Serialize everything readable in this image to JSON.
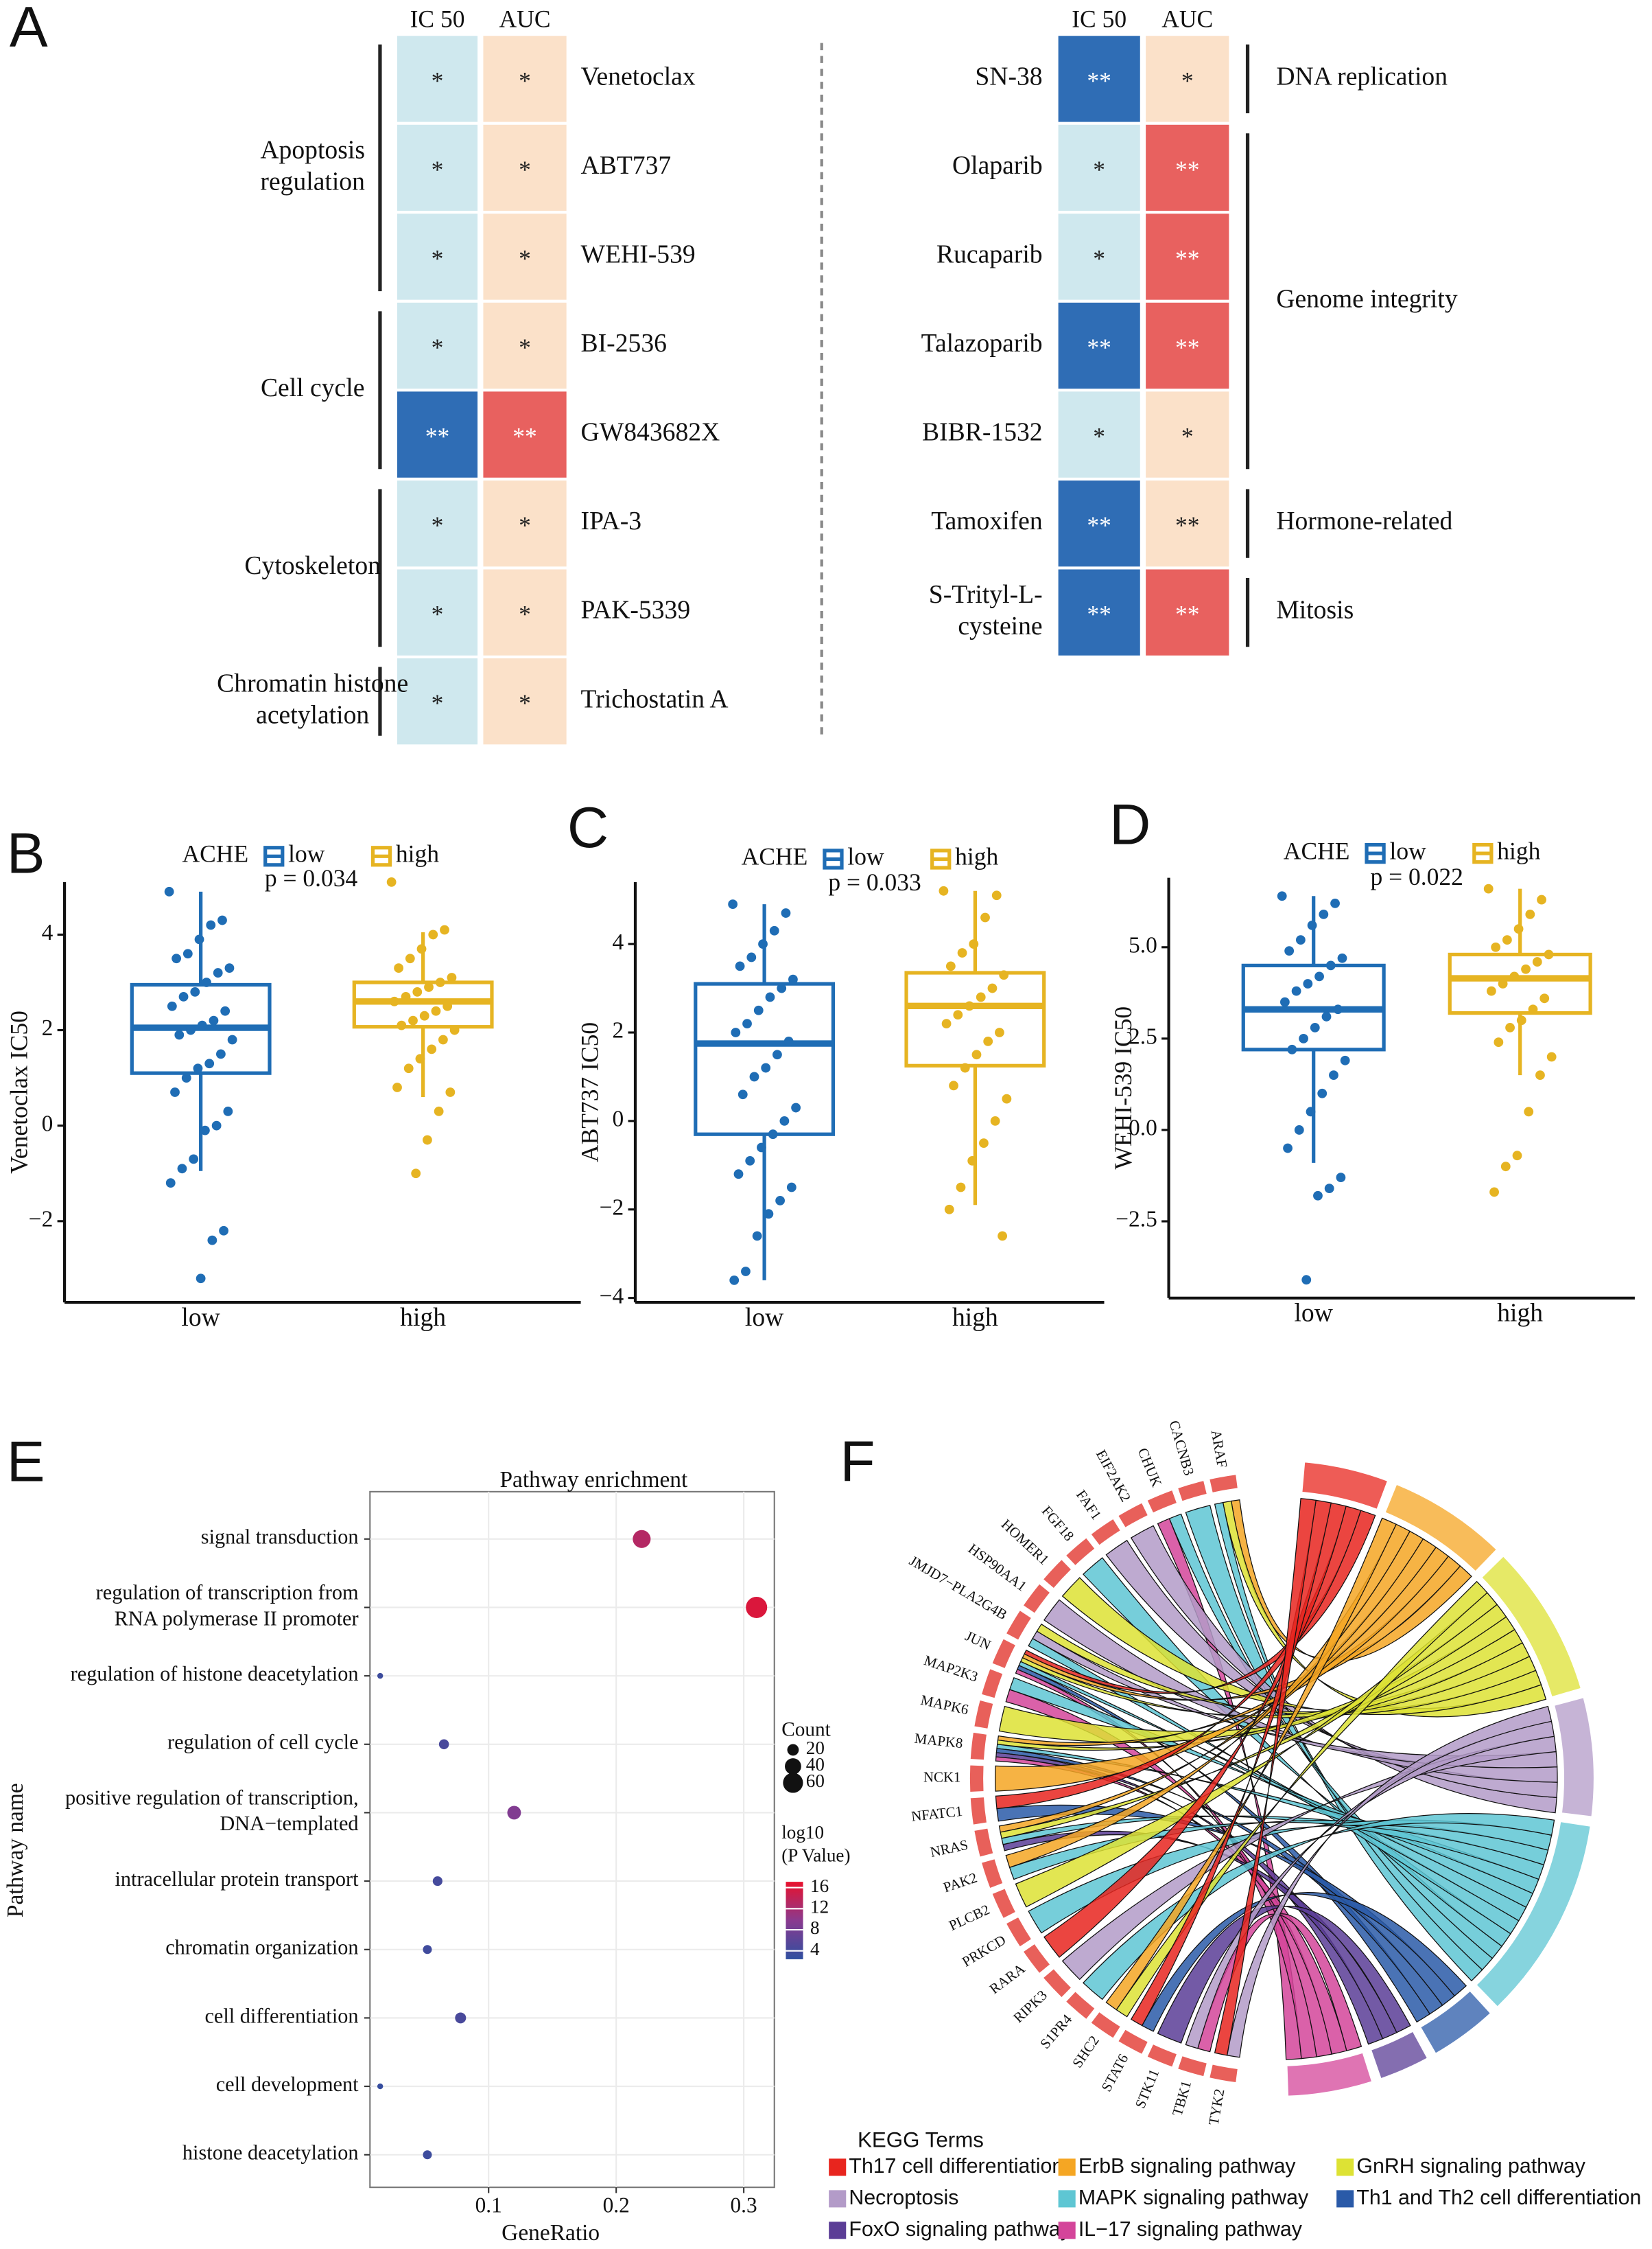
{
  "chart_data": [
    {
      "type": "heatmap",
      "panel": "A",
      "columns": [
        "IC 50",
        "AUC"
      ],
      "blocks": [
        {
          "groups": [
            {
              "name": "Apoptosis\nregulation",
              "drugs": [
                {
                  "name": "Venetoclax",
                  "cells": [
                    "*",
                    "*"
                  ],
                  "colors": [
                    "#cfe8ee",
                    "#fbe1c9"
                  ]
                },
                {
                  "name": "ABT737",
                  "cells": [
                    "*",
                    "*"
                  ],
                  "colors": [
                    "#cfe8ee",
                    "#fbe1c9"
                  ]
                },
                {
                  "name": "WEHI-539",
                  "cells": [
                    "*",
                    "*"
                  ],
                  "colors": [
                    "#cfe8ee",
                    "#fbe1c9"
                  ]
                }
              ]
            },
            {
              "name": "Cell cycle",
              "drugs": [
                {
                  "name": "BI-2536",
                  "cells": [
                    "*",
                    "*"
                  ],
                  "colors": [
                    "#cfe8ee",
                    "#fbe1c9"
                  ]
                },
                {
                  "name": "GW843682X",
                  "cells": [
                    "**",
                    "**"
                  ],
                  "colors": [
                    "#2f6db5",
                    "#e8615f"
                  ]
                }
              ]
            },
            {
              "name": "Cytoskeleton",
              "drugs": [
                {
                  "name": "IPA-3",
                  "cells": [
                    "*",
                    "*"
                  ],
                  "colors": [
                    "#cfe8ee",
                    "#fbe1c9"
                  ]
                },
                {
                  "name": "PAK-5339",
                  "cells": [
                    "*",
                    "*"
                  ],
                  "colors": [
                    "#cfe8ee",
                    "#fbe1c9"
                  ]
                }
              ]
            },
            {
              "name": "Chromatin histone\nacetylation",
              "drugs": [
                {
                  "name": "Trichostatin A",
                  "cells": [
                    "*",
                    "*"
                  ],
                  "colors": [
                    "#cfe8ee",
                    "#fbe1c9"
                  ]
                }
              ]
            }
          ]
        },
        {
          "groups": [
            {
              "name": "DNA replication",
              "drugs": [
                {
                  "name": "SN-38",
                  "cells": [
                    "**",
                    "*"
                  ],
                  "colors": [
                    "#2f6db5",
                    "#fbe1c9"
                  ]
                }
              ]
            },
            {
              "name": "Genome integrity",
              "drugs": [
                {
                  "name": "Olaparib",
                  "cells": [
                    "*",
                    "**"
                  ],
                  "colors": [
                    "#cfe8ee",
                    "#e8615f"
                  ]
                },
                {
                  "name": "Rucaparib",
                  "cells": [
                    "*",
                    "**"
                  ],
                  "colors": [
                    "#cfe8ee",
                    "#e8615f"
                  ]
                },
                {
                  "name": "Talazoparib",
                  "cells": [
                    "**",
                    "**"
                  ],
                  "colors": [
                    "#2f6db5",
                    "#e8615f"
                  ]
                },
                {
                  "name": "BIBR-1532",
                  "cells": [
                    "*",
                    "*"
                  ],
                  "colors": [
                    "#cfe8ee",
                    "#fbe1c9"
                  ]
                }
              ]
            },
            {
              "name": "Hormone-related",
              "drugs": [
                {
                  "name": "Tamoxifen",
                  "cells": [
                    "**",
                    "**"
                  ],
                  "colors": [
                    "#2f6db5",
                    "#fbe1c9"
                  ]
                }
              ]
            },
            {
              "name": "Mitosis",
              "drugs": [
                {
                  "name": "S-Trityl-L-\ncysteine",
                  "cells": [
                    "**",
                    "**"
                  ],
                  "colors": [
                    "#2f6db5",
                    "#e8615f"
                  ]
                }
              ]
            }
          ]
        }
      ]
    },
    {
      "type": "box",
      "panel": "B",
      "ylabel": "Venetoclax IC50",
      "legend_title": "ACHE",
      "annotation": "p = 0.034",
      "categories": [
        "low",
        "high"
      ],
      "ylim": [
        -3.7,
        5.1
      ],
      "yticks": [
        {
          "value": -2,
          "label": "−2"
        },
        0,
        2,
        4
      ],
      "series": [
        {
          "name": "low",
          "color": "#1f6db5",
          "box": {
            "min": -0.95,
            "q1": 1.1,
            "median": 2.05,
            "q3": 2.95,
            "max": 4.9
          },
          "values": [
            4.9,
            4.3,
            4.2,
            3.9,
            3.6,
            3.5,
            3.3,
            3.2,
            3.0,
            2.8,
            2.7,
            2.5,
            2.4,
            2.2,
            2.1,
            2.0,
            1.9,
            1.8,
            1.5,
            1.3,
            1.2,
            1.0,
            0.7,
            0.3,
            0.0,
            -0.1,
            -0.7,
            -0.9,
            -1.2,
            -2.2,
            -2.4,
            -3.2
          ]
        },
        {
          "name": "high",
          "color": "#e6b422",
          "box": {
            "min": 0.6,
            "q1": 2.07,
            "median": 2.6,
            "q3": 3.0,
            "max": 4.05
          },
          "values": [
            5.1,
            4.1,
            4.0,
            3.7,
            3.5,
            3.3,
            3.1,
            3.0,
            2.9,
            2.8,
            2.7,
            2.6,
            2.5,
            2.4,
            2.3,
            2.2,
            2.1,
            2.0,
            1.8,
            1.6,
            1.4,
            1.2,
            0.8,
            0.7,
            0.3,
            -0.3,
            -1.0
          ]
        }
      ]
    },
    {
      "type": "box",
      "panel": "C",
      "ylabel": "ABT737 IC50",
      "legend_title": "ACHE",
      "annotation": "p = 0.033",
      "categories": [
        "low",
        "high"
      ],
      "ylim": [
        -4.1,
        5.4
      ],
      "yticks": [
        {
          "value": -4,
          "label": "−4"
        },
        {
          "value": -2,
          "label": "−2"
        },
        0,
        2,
        4
      ],
      "series": [
        {
          "name": "low",
          "color": "#1f6db5",
          "box": {
            "min": -3.6,
            "q1": -0.3,
            "median": 1.75,
            "q3": 3.1,
            "max": 4.9
          },
          "values": [
            4.9,
            4.7,
            4.3,
            4.0,
            3.7,
            3.5,
            3.2,
            3.0,
            2.8,
            2.5,
            2.2,
            2.0,
            1.8,
            1.5,
            1.2,
            1.0,
            0.6,
            0.3,
            0.0,
            -0.3,
            -0.6,
            -0.9,
            -1.2,
            -1.5,
            -1.8,
            -2.1,
            -2.6,
            -3.4,
            -3.6
          ]
        },
        {
          "name": "high",
          "color": "#e6b422",
          "box": {
            "min": -1.9,
            "q1": 1.25,
            "median": 2.6,
            "q3": 3.35,
            "max": 5.2
          },
          "values": [
            5.2,
            5.1,
            4.6,
            4.0,
            3.8,
            3.5,
            3.3,
            3.0,
            2.8,
            2.6,
            2.4,
            2.2,
            2.0,
            1.8,
            1.5,
            1.2,
            0.8,
            0.5,
            0.0,
            -0.5,
            -0.9,
            -1.5,
            -2.0,
            -2.6
          ]
        }
      ]
    },
    {
      "type": "box",
      "panel": "D",
      "ylabel": "WEHI-539 IC50",
      "legend_title": "ACHE",
      "annotation": "p = 0.022",
      "categories": [
        "low",
        "high"
      ],
      "ylim": [
        -4.6,
        6.9
      ],
      "yticks": [
        {
          "value": -2.5,
          "label": "−2.5"
        },
        {
          "value": 0,
          "label": "0.0"
        },
        2.5,
        {
          "value": 5,
          "label": "5.0"
        }
      ],
      "series": [
        {
          "name": "low",
          "color": "#1f6db5",
          "box": {
            "min": -0.9,
            "q1": 2.2,
            "median": 3.3,
            "q3": 4.5,
            "max": 6.4
          },
          "values": [
            6.4,
            6.2,
            5.9,
            5.6,
            5.2,
            4.9,
            4.7,
            4.5,
            4.2,
            4.0,
            3.8,
            3.5,
            3.3,
            3.1,
            2.8,
            2.5,
            2.2,
            1.9,
            1.5,
            1.0,
            0.5,
            0.0,
            -0.5,
            -1.3,
            -1.6,
            -1.8,
            -4.1
          ]
        },
        {
          "name": "high",
          "color": "#e6b422",
          "box": {
            "min": 1.5,
            "q1": 3.2,
            "median": 4.15,
            "q3": 4.8,
            "max": 6.6
          },
          "values": [
            6.6,
            6.3,
            5.9,
            5.5,
            5.2,
            5.0,
            4.8,
            4.6,
            4.4,
            4.2,
            4.0,
            3.8,
            3.6,
            3.3,
            3.0,
            2.8,
            2.4,
            2.0,
            1.5,
            0.5,
            -0.7,
            -1.0,
            -1.7
          ]
        }
      ]
    },
    {
      "type": "dot",
      "panel": "E",
      "title": "Pathway enrichment",
      "xlabel": "GeneRatio",
      "ylabel": "Pathway name",
      "categories": [
        "signal transduction",
        "regulation of transcription from\nRNA polymerase II promoter",
        "regulation of histone deacetylation",
        "regulation of cell cycle",
        "positive regulation of transcription,\nDNA−templated",
        "intracellular protein transport",
        "chromatin organization",
        "cell differentiation",
        "cell development",
        "histone deacetylation"
      ],
      "values": [
        0.22,
        0.31,
        0.015,
        0.065,
        0.12,
        0.06,
        0.052,
        0.078,
        0.015,
        0.052
      ],
      "counts": [
        48,
        68,
        5,
        15,
        28,
        14,
        12,
        18,
        5,
        12
      ],
      "log_p": [
        13,
        16,
        3.5,
        4.5,
        9,
        4.2,
        3.8,
        4.5,
        3,
        3.5
      ],
      "xlim": [
        0.007,
        0.324
      ],
      "xticks": [
        0.1,
        0.2,
        0.3
      ],
      "grid": true,
      "size_legend": {
        "title": "Count",
        "values": [
          20,
          40,
          60
        ]
      },
      "color_legend": {
        "title": "log10\n(P Value)",
        "ticks": [
          16,
          12,
          8,
          4
        ],
        "clim": [
          2.4,
          17.1
        ],
        "colors": [
          "#2f4fa0",
          "#8a3a8f",
          "#e8112d"
        ]
      }
    },
    {
      "type": "chord",
      "panel": "F",
      "legend_title": "KEGG Terms",
      "gene_color": "#e8605a",
      "genes": [
        "ARAF",
        "CACNB3",
        "CHUK",
        "EIF2AK2",
        "FAF1",
        "FGF18",
        "HOMER1",
        "HSP90AA1",
        "JMJD7−PLA2G4B",
        "JUN",
        "MAP2K3",
        "MAPK6",
        "MAPK8",
        "NCK1",
        "NFATC1",
        "NRAS",
        "PAK2",
        "PLCB2",
        "PRKCD",
        "RARA",
        "RIPK3",
        "S1PR4",
        "SHC2",
        "STAT6",
        "STK11",
        "TBK1",
        "TYK2"
      ],
      "terms": [
        {
          "name": "Th17 cell differentiation",
          "color": "#e8251e"
        },
        {
          "name": "ErbB signaling pathway",
          "color": "#f5a623"
        },
        {
          "name": "GnRH signaling pathway",
          "color": "#dde234"
        },
        {
          "name": "Necroptosis",
          "color": "#b39bc8"
        },
        {
          "name": "MAPK signaling pathway",
          "color": "#5ec6d3"
        },
        {
          "name": "Th1 and Th2 cell differentiation",
          "color": "#2a5aa8"
        },
        {
          "name": "FoxO signaling pathway",
          "color": "#5b3d96"
        },
        {
          "name": "IL−17 signaling pathway",
          "color": "#d4459a"
        }
      ],
      "gene_terms": [
        [
          1,
          2,
          4
        ],
        [
          4
        ],
        [
          4,
          7
        ],
        [
          3
        ],
        [
          3
        ],
        [
          4
        ],
        [
          2
        ],
        [
          3
        ],
        [
          2,
          3,
          4
        ],
        [
          0,
          1,
          2,
          4,
          5,
          7
        ],
        [
          4,
          7
        ],
        [
          2
        ],
        [
          1,
          2,
          4,
          5,
          6,
          7
        ],
        [
          1
        ],
        [
          0,
          5
        ],
        [
          1,
          2,
          4,
          6
        ],
        [
          1,
          4
        ],
        [
          2
        ],
        [
          4
        ],
        [
          0
        ],
        [
          3
        ],
        [
          4
        ],
        [
          1,
          2
        ],
        [
          0,
          5
        ],
        [
          6
        ],
        [
          3,
          7
        ],
        [
          0,
          3
        ]
      ]
    }
  ]
}
